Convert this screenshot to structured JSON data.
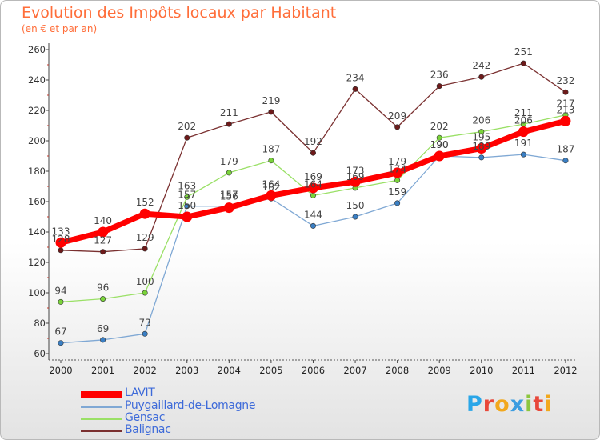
{
  "header": {
    "title": "Evolution des Impôts locaux par Habitant",
    "subtitle": "(en € et par an)"
  },
  "logo": {
    "text": "Proxiti",
    "letters": [
      "P",
      "r",
      "o",
      "x",
      "i",
      "t",
      "i"
    ],
    "colors": [
      "#2aa6e8",
      "#e8483a",
      "#f2a81d",
      "#3d9de0",
      "#8cc63e",
      "#e8483a",
      "#f2a81d"
    ]
  },
  "chart_data": {
    "type": "line",
    "title": "Evolution des Impôts locaux par Habitant",
    "subtitle": "(en € et par an)",
    "xlabel": "",
    "ylabel": "",
    "ylim": [
      60,
      260
    ],
    "yticks": [
      60,
      80,
      100,
      120,
      140,
      160,
      180,
      200,
      220,
      240,
      260
    ],
    "grid": false,
    "legend_position": "bottom-left",
    "categories": [
      "2000",
      "2001",
      "2002",
      "2003",
      "2004",
      "2005",
      "2006",
      "2007",
      "2008",
      "2009",
      "2010",
      "2011",
      "2012"
    ],
    "series": [
      {
        "name": "LAVIT",
        "color": "#ff0000",
        "marker_color": "#ff0000",
        "values": [
          133,
          140,
          152,
          150,
          156,
          164,
          169,
          173,
          179,
          190,
          195,
          206,
          213
        ]
      },
      {
        "name": "Puygaillard-de-Lomagne",
        "color": "#7fa8d4",
        "marker_color": "#3a7fc4",
        "values": [
          67,
          69,
          73,
          157,
          157,
          162,
          144,
          150,
          159,
          190,
          189,
          191,
          187
        ]
      },
      {
        "name": "Gensac",
        "color": "#9ae066",
        "marker_color": "#7ad43a",
        "values": [
          94,
          96,
          100,
          163,
          179,
          187,
          164,
          169,
          174,
          202,
          206,
          211,
          217
        ]
      },
      {
        "name": "Balignac",
        "color": "#7a3030",
        "marker_color": "#6e1a1a",
        "values": [
          128,
          127,
          129,
          202,
          211,
          219,
          192,
          234,
          209,
          236,
          242,
          251,
          232
        ]
      }
    ],
    "data_labels": {
      "LAVIT": [
        "133",
        "140",
        "152",
        "150",
        "156",
        "164",
        "169",
        "173",
        "179",
        "190",
        "195",
        "206",
        "213"
      ],
      "Puygaillard-de-Lomagne": [
        "67",
        "69",
        "73",
        "157",
        "157",
        "162",
        "144",
        "150",
        "159",
        "190",
        "189",
        "191",
        "187"
      ],
      "Gensac": [
        "94",
        "96",
        "100",
        "163",
        "179",
        "187",
        "164",
        "169",
        "174",
        "202",
        "206",
        "211",
        "217"
      ],
      "Balignac": [
        "128",
        "127",
        "129",
        "202",
        "211",
        "219",
        "192",
        "234",
        "209",
        "236",
        "242",
        "251",
        "232"
      ]
    }
  }
}
